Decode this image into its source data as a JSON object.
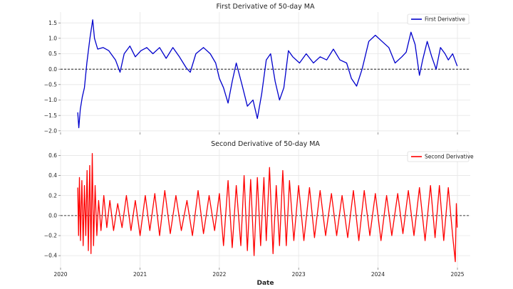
{
  "chart_data": [
    {
      "type": "line",
      "title": "First Derivative of 50-day MA",
      "xlabel": "",
      "ylabel": "",
      "ylim": [
        -2.05,
        1.85
      ],
      "yticks": [
        -2.0,
        -1.5,
        -1.0,
        -0.5,
        0.0,
        0.5,
        1.0,
        1.5
      ],
      "ytick_labels": [
        "−2.0",
        "−1.5",
        "−1.0",
        "−0.5",
        "0.0",
        "0.5",
        "1.0",
        "1.5"
      ],
      "grid": true,
      "legend_position": "top-right",
      "reference_line": {
        "y": 0.0,
        "style": "dashed",
        "color": "#000000"
      },
      "series": [
        {
          "name": "First Derivative",
          "color": "#0000cc",
          "points": [
            [
              "2020-03-20",
              -1.4
            ],
            [
              "2020-03-25",
              -1.9
            ],
            [
              "2020-04-01",
              -1.3
            ],
            [
              "2020-04-10",
              -0.9
            ],
            [
              "2020-04-20",
              -0.6
            ],
            [
              "2020-05-01",
              0.2
            ],
            [
              "2020-05-15",
              1.0
            ],
            [
              "2020-05-28",
              1.6
            ],
            [
              "2020-06-05",
              1.0
            ],
            [
              "2020-06-20",
              0.65
            ],
            [
              "2020-07-15",
              0.7
            ],
            [
              "2020-08-10",
              0.6
            ],
            [
              "2020-09-10",
              0.3
            ],
            [
              "2020-10-01",
              -0.1
            ],
            [
              "2020-10-20",
              0.5
            ],
            [
              "2020-11-15",
              0.75
            ],
            [
              "2020-12-10",
              0.4
            ],
            [
              "2021-01-05",
              0.6
            ],
            [
              "2021-02-01",
              0.7
            ],
            [
              "2021-03-01",
              0.5
            ],
            [
              "2021-04-01",
              0.7
            ],
            [
              "2021-05-01",
              0.35
            ],
            [
              "2021-06-01",
              0.7
            ],
            [
              "2021-07-01",
              0.4
            ],
            [
              "2021-08-01",
              0.05
            ],
            [
              "2021-08-20",
              -0.1
            ],
            [
              "2021-09-15",
              0.5
            ],
            [
              "2021-10-20",
              0.7
            ],
            [
              "2021-11-20",
              0.5
            ],
            [
              "2021-12-15",
              0.2
            ],
            [
              "2022-01-01",
              -0.3
            ],
            [
              "2022-01-20",
              -0.6
            ],
            [
              "2022-02-10",
              -1.1
            ],
            [
              "2022-03-01",
              -0.4
            ],
            [
              "2022-03-20",
              0.2
            ],
            [
              "2022-04-15",
              -0.5
            ],
            [
              "2022-05-10",
              -1.2
            ],
            [
              "2022-06-05",
              -1.0
            ],
            [
              "2022-06-25",
              -1.6
            ],
            [
              "2022-07-15",
              -0.8
            ],
            [
              "2022-08-05",
              0.3
            ],
            [
              "2022-08-25",
              0.5
            ],
            [
              "2022-09-15",
              -0.4
            ],
            [
              "2022-10-05",
              -1.0
            ],
            [
              "2022-10-25",
              -0.6
            ],
            [
              "2022-11-15",
              0.6
            ],
            [
              "2022-12-05",
              0.4
            ],
            [
              "2023-01-05",
              0.2
            ],
            [
              "2023-02-05",
              0.5
            ],
            [
              "2023-03-10",
              0.2
            ],
            [
              "2023-04-10",
              0.4
            ],
            [
              "2023-05-10",
              0.3
            ],
            [
              "2023-06-10",
              0.65
            ],
            [
              "2023-07-10",
              0.3
            ],
            [
              "2023-08-10",
              0.2
            ],
            [
              "2023-09-01",
              -0.3
            ],
            [
              "2023-09-25",
              -0.55
            ],
            [
              "2023-10-20",
              0.0
            ],
            [
              "2023-11-20",
              0.9
            ],
            [
              "2023-12-20",
              1.1
            ],
            [
              "2024-01-20",
              0.9
            ],
            [
              "2024-02-20",
              0.7
            ],
            [
              "2024-03-20",
              0.2
            ],
            [
              "2024-04-20",
              0.4
            ],
            [
              "2024-05-10",
              0.55
            ],
            [
              "2024-06-01",
              1.2
            ],
            [
              "2024-06-20",
              0.8
            ],
            [
              "2024-07-10",
              -0.2
            ],
            [
              "2024-07-25",
              0.3
            ],
            [
              "2024-08-15",
              0.9
            ],
            [
              "2024-09-05",
              0.4
            ],
            [
              "2024-09-25",
              0.0
            ],
            [
              "2024-10-15",
              0.7
            ],
            [
              "2024-11-05",
              0.5
            ],
            [
              "2024-11-20",
              0.3
            ],
            [
              "2024-12-10",
              0.5
            ],
            [
              "2024-12-31",
              0.1
            ]
          ]
        }
      ]
    },
    {
      "type": "line",
      "title": "Second Derivative of 50-day MA",
      "xlabel": "Date",
      "ylabel": "",
      "ylim": [
        -0.52,
        0.66
      ],
      "yticks": [
        -0.4,
        -0.2,
        0.0,
        0.2,
        0.4,
        0.6
      ],
      "ytick_labels": [
        "−0.4",
        "−0.2",
        "0.0",
        "0.2",
        "0.4",
        "0.6"
      ],
      "xlim": [
        "2020-01-01",
        "2025-03-01"
      ],
      "xticks": [
        "2020-01-01",
        "2021-01-01",
        "2022-01-01",
        "2023-01-01",
        "2024-01-01",
        "2025-01-01"
      ],
      "xtick_labels": [
        "2020",
        "2021",
        "2022",
        "2023",
        "2024",
        "2025"
      ],
      "grid": true,
      "legend_position": "top-right",
      "reference_line": {
        "y": 0.0,
        "style": "dashed",
        "color": "#000000"
      },
      "series": [
        {
          "name": "Second Derivative",
          "color": "#ff0000",
          "points": [
            [
              "2020-03-20",
              0.28
            ],
            [
              "2020-03-24",
              -0.2
            ],
            [
              "2020-03-28",
              0.38
            ],
            [
              "2020-04-02",
              -0.25
            ],
            [
              "2020-04-08",
              0.35
            ],
            [
              "2020-04-14",
              -0.3
            ],
            [
              "2020-04-20",
              0.3
            ],
            [
              "2020-04-26",
              -0.2
            ],
            [
              "2020-05-02",
              0.45
            ],
            [
              "2020-05-08",
              -0.35
            ],
            [
              "2020-05-14",
              0.5
            ],
            [
              "2020-05-20",
              -0.38
            ],
            [
              "2020-05-26",
              0.62
            ],
            [
              "2020-06-01",
              -0.3
            ],
            [
              "2020-06-08",
              0.3
            ],
            [
              "2020-06-16",
              -0.2
            ],
            [
              "2020-06-24",
              0.15
            ],
            [
              "2020-07-05",
              -0.15
            ],
            [
              "2020-07-18",
              0.2
            ],
            [
              "2020-08-01",
              -0.12
            ],
            [
              "2020-08-15",
              0.15
            ],
            [
              "2020-09-01",
              -0.15
            ],
            [
              "2020-09-20",
              0.12
            ],
            [
              "2020-10-10",
              -0.12
            ],
            [
              "2020-10-30",
              0.2
            ],
            [
              "2020-11-20",
              -0.15
            ],
            [
              "2020-12-10",
              0.15
            ],
            [
              "2021-01-01",
              -0.2
            ],
            [
              "2021-01-25",
              0.2
            ],
            [
              "2021-02-15",
              -0.15
            ],
            [
              "2021-03-10",
              0.22
            ],
            [
              "2021-04-01",
              -0.2
            ],
            [
              "2021-04-25",
              0.25
            ],
            [
              "2021-05-20",
              -0.18
            ],
            [
              "2021-06-15",
              0.2
            ],
            [
              "2021-07-10",
              -0.15
            ],
            [
              "2021-08-05",
              0.15
            ],
            [
              "2021-08-30",
              -0.2
            ],
            [
              "2021-09-25",
              0.25
            ],
            [
              "2021-10-20",
              -0.18
            ],
            [
              "2021-11-15",
              0.2
            ],
            [
              "2021-12-10",
              -0.15
            ],
            [
              "2022-01-01",
              0.22
            ],
            [
              "2022-01-20",
              -0.3
            ],
            [
              "2022-02-10",
              0.35
            ],
            [
              "2022-03-01",
              -0.32
            ],
            [
              "2022-03-20",
              0.3
            ],
            [
              "2022-04-10",
              -0.3
            ],
            [
              "2022-04-25",
              0.4
            ],
            [
              "2022-05-10",
              -0.35
            ],
            [
              "2022-05-25",
              0.36
            ],
            [
              "2022-06-10",
              -0.4
            ],
            [
              "2022-06-25",
              0.38
            ],
            [
              "2022-07-10",
              -0.3
            ],
            [
              "2022-07-25",
              0.38
            ],
            [
              "2022-08-05",
              -0.25
            ],
            [
              "2022-08-20",
              0.48
            ],
            [
              "2022-09-05",
              -0.38
            ],
            [
              "2022-09-20",
              0.3
            ],
            [
              "2022-10-05",
              -0.3
            ],
            [
              "2022-10-20",
              0.45
            ],
            [
              "2022-11-05",
              -0.3
            ],
            [
              "2022-11-20",
              0.35
            ],
            [
              "2022-12-10",
              -0.25
            ],
            [
              "2023-01-01",
              0.3
            ],
            [
              "2023-01-25",
              -0.25
            ],
            [
              "2023-02-20",
              0.28
            ],
            [
              "2023-03-15",
              -0.22
            ],
            [
              "2023-04-10",
              0.25
            ],
            [
              "2023-05-05",
              -0.2
            ],
            [
              "2023-06-01",
              0.22
            ],
            [
              "2023-06-25",
              -0.2
            ],
            [
              "2023-07-20",
              0.2
            ],
            [
              "2023-08-15",
              -0.22
            ],
            [
              "2023-09-10",
              0.25
            ],
            [
              "2023-10-05",
              -0.25
            ],
            [
              "2023-10-30",
              0.25
            ],
            [
              "2023-11-25",
              -0.2
            ],
            [
              "2023-12-20",
              0.22
            ],
            [
              "2024-01-15",
              -0.25
            ],
            [
              "2024-02-10",
              0.2
            ],
            [
              "2024-03-05",
              -0.2
            ],
            [
              "2024-04-01",
              0.22
            ],
            [
              "2024-04-25",
              -0.18
            ],
            [
              "2024-05-20",
              0.25
            ],
            [
              "2024-06-15",
              -0.2
            ],
            [
              "2024-07-10",
              0.28
            ],
            [
              "2024-08-05",
              -0.25
            ],
            [
              "2024-08-30",
              0.3
            ],
            [
              "2024-09-20",
              -0.22
            ],
            [
              "2024-10-10",
              0.3
            ],
            [
              "2024-10-30",
              -0.25
            ],
            [
              "2024-11-20",
              0.28
            ],
            [
              "2024-12-10",
              -0.2
            ],
            [
              "2024-12-22",
              -0.46
            ],
            [
              "2024-12-27",
              0.12
            ],
            [
              "2024-12-31",
              -0.12
            ]
          ]
        }
      ]
    }
  ]
}
